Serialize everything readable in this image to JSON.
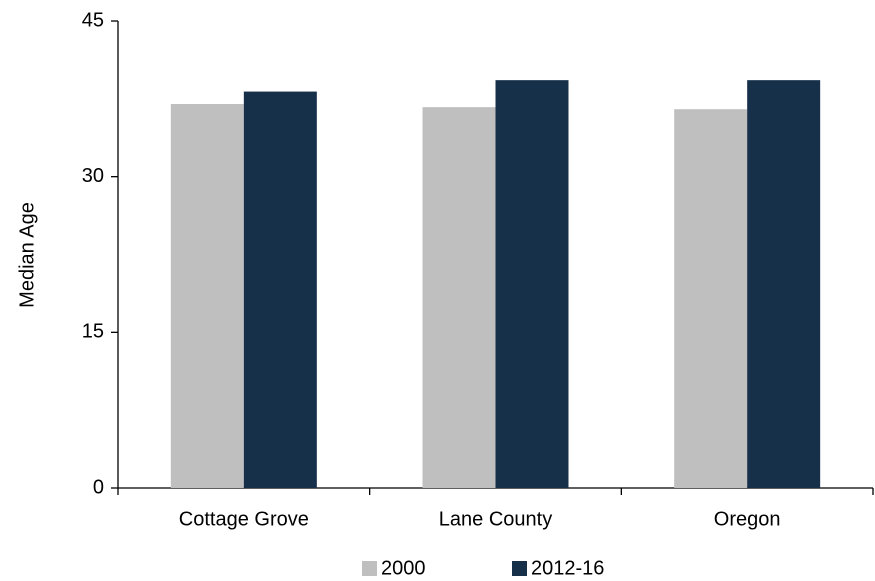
{
  "chart_data": {
    "type": "bar",
    "y_label": "Median Age",
    "categories": [
      "Cottage Grove",
      "Lane County",
      "Oregon"
    ],
    "series": [
      {
        "name": "2000",
        "color": "#bfbfbf",
        "values": [
          37.0,
          36.7,
          36.5
        ]
      },
      {
        "name": "2012-16",
        "color": "#17304a",
        "values": [
          38.2,
          39.3,
          39.3
        ]
      }
    ],
    "ylim": [
      0,
      45
    ],
    "yticks": [
      0,
      15,
      30,
      45
    ],
    "grid": false
  }
}
